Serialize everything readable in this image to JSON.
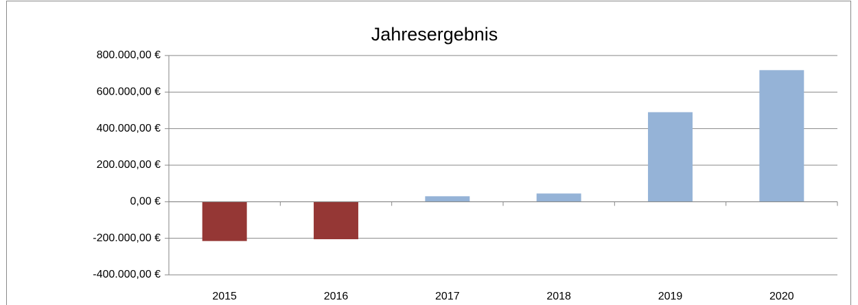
{
  "chart_data": {
    "type": "bar",
    "title": "Jahresergebnis",
    "categories": [
      "2015",
      "2016",
      "2017",
      "2018",
      "2019",
      "2020"
    ],
    "values": [
      -215000,
      -205000,
      30000,
      45000,
      490000,
      720000
    ],
    "colors": [
      "#953735",
      "#953735",
      "#95b3d7",
      "#95b3d7",
      "#95b3d7",
      "#95b3d7"
    ],
    "ylim": [
      -400000,
      800000
    ],
    "yticks": [
      {
        "value": -400000,
        "label": "-400.000,00 €"
      },
      {
        "value": -200000,
        "label": "-200.000,00 €"
      },
      {
        "value": 0,
        "label": "0,00 €"
      },
      {
        "value": 200000,
        "label": "200.000,00 €"
      },
      {
        "value": 400000,
        "label": "400.000,00 €"
      },
      {
        "value": 600000,
        "label": "600.000,00 €"
      },
      {
        "value": 800000,
        "label": "800.000,00 €"
      }
    ],
    "grid": true
  }
}
